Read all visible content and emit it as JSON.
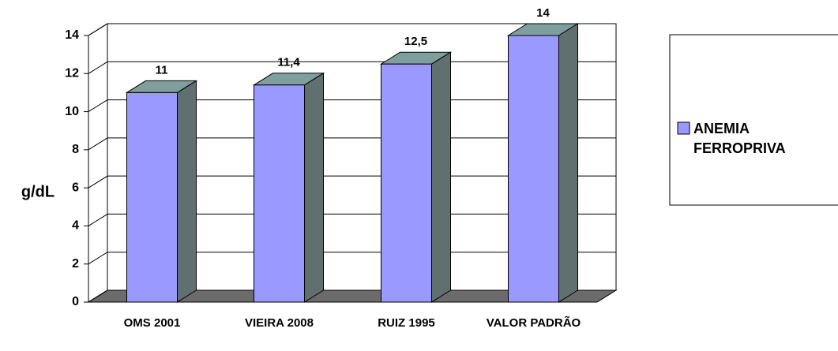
{
  "chart_data": {
    "type": "bar3d",
    "ylabel": "g/dL",
    "categories": [
      "OMS 2001",
      "VIEIRA 2008",
      "RUIZ 1995",
      "VALOR PADRÃO"
    ],
    "series": [
      {
        "name": "ANEMIA FERROPRIVA",
        "color": "#9999ff",
        "values": [
          11,
          11.4,
          12.5,
          14
        ],
        "value_labels": [
          "11",
          "11,4",
          "12,5",
          "14"
        ]
      }
    ],
    "ylim": [
      0,
      14
    ],
    "yticks": [
      0,
      2,
      4,
      6,
      8,
      10,
      12,
      14
    ],
    "grid": true,
    "legend": "right"
  }
}
